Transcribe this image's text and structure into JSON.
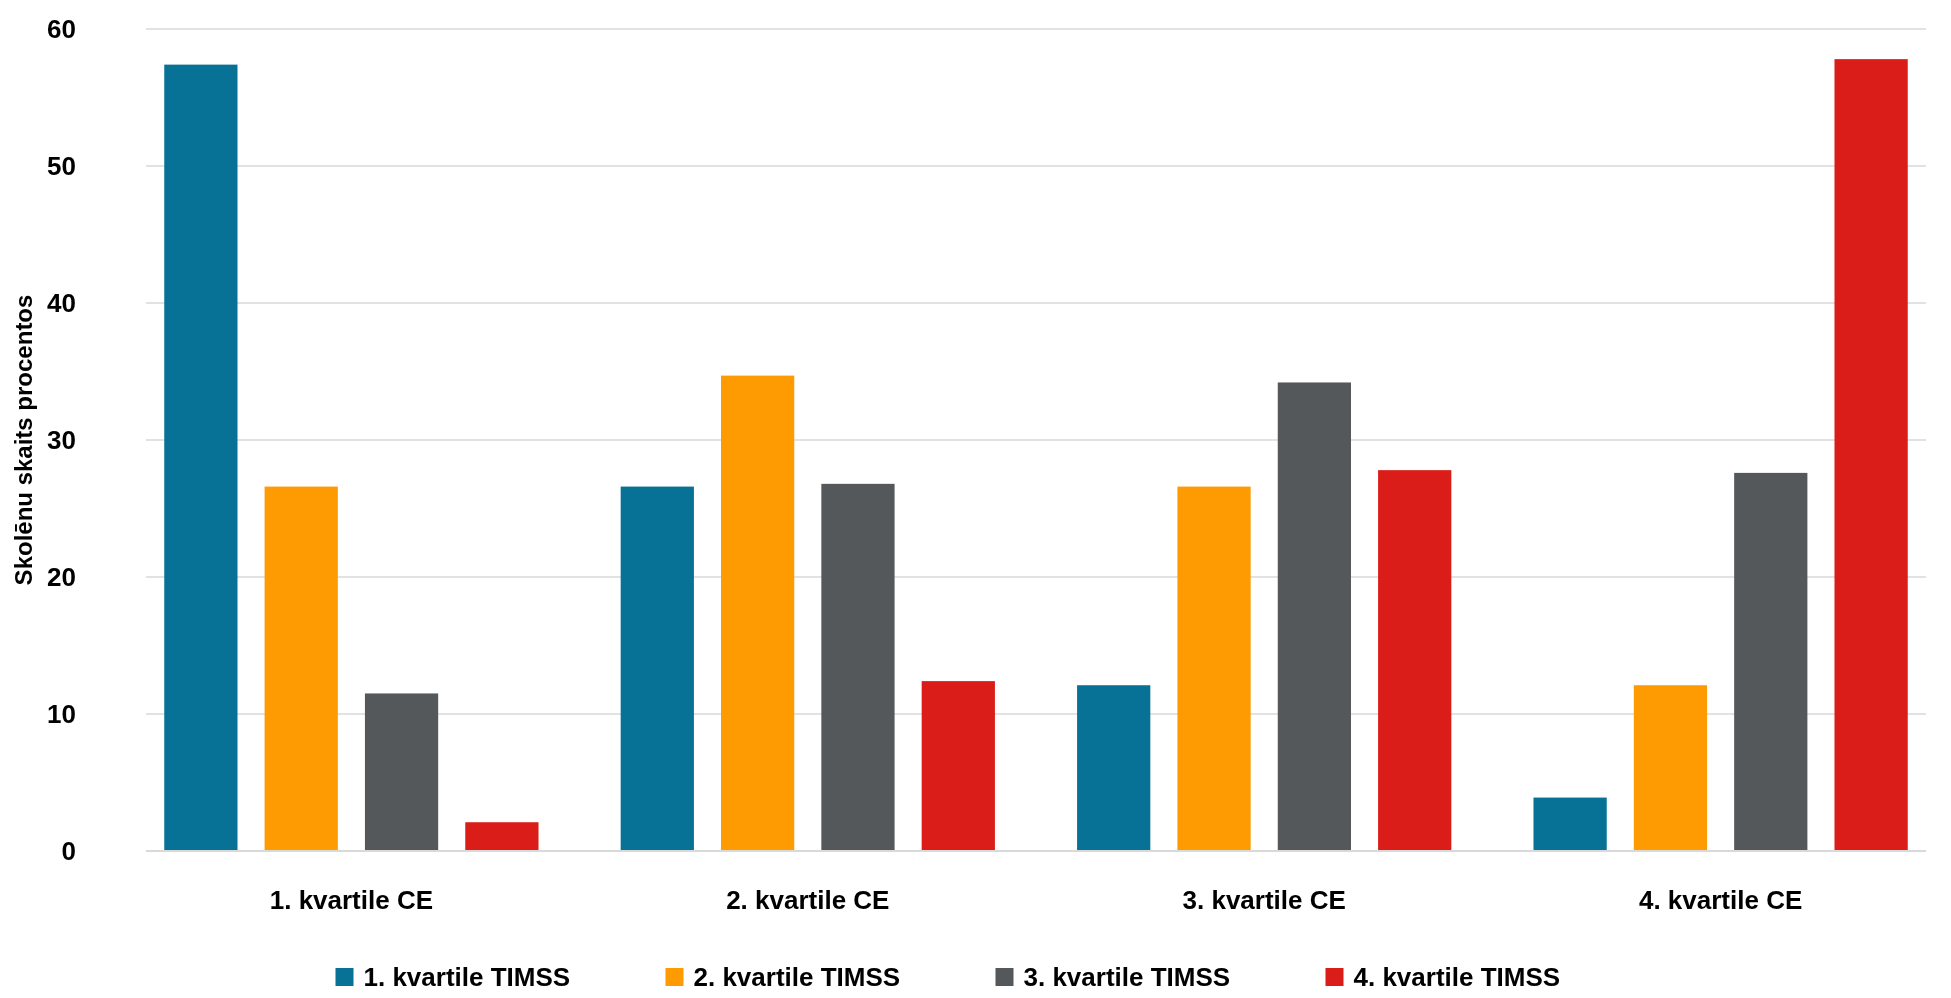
{
  "chart_data": {
    "type": "bar",
    "ylabel": "Skolēnu skaits procentos",
    "categories": [
      "1. kvartile CE",
      "2. kvartile CE",
      "3. kvartile CE",
      "4. kvartile CE"
    ],
    "series": [
      {
        "name": "1. kvartile TIMSS",
        "color": "#087196",
        "values": [
          57.4,
          26.6,
          12.1,
          3.9
        ]
      },
      {
        "name": "2. kvartile TIMSS",
        "color": "#fe9b03",
        "values": [
          26.6,
          34.7,
          26.6,
          12.1
        ]
      },
      {
        "name": "3. kvartile TIMSS",
        "color": "#55585b",
        "values": [
          11.5,
          26.8,
          34.2,
          27.6
        ]
      },
      {
        "name": "4. kvartile TIMSS",
        "color": "#da1d18",
        "values": [
          2.1,
          12.4,
          27.8,
          57.8
        ]
      }
    ],
    "ylim": [
      0,
      60
    ],
    "yticks": [
      0,
      10,
      20,
      30,
      40,
      50,
      60
    ],
    "grid": "y",
    "legend": "bottom"
  }
}
